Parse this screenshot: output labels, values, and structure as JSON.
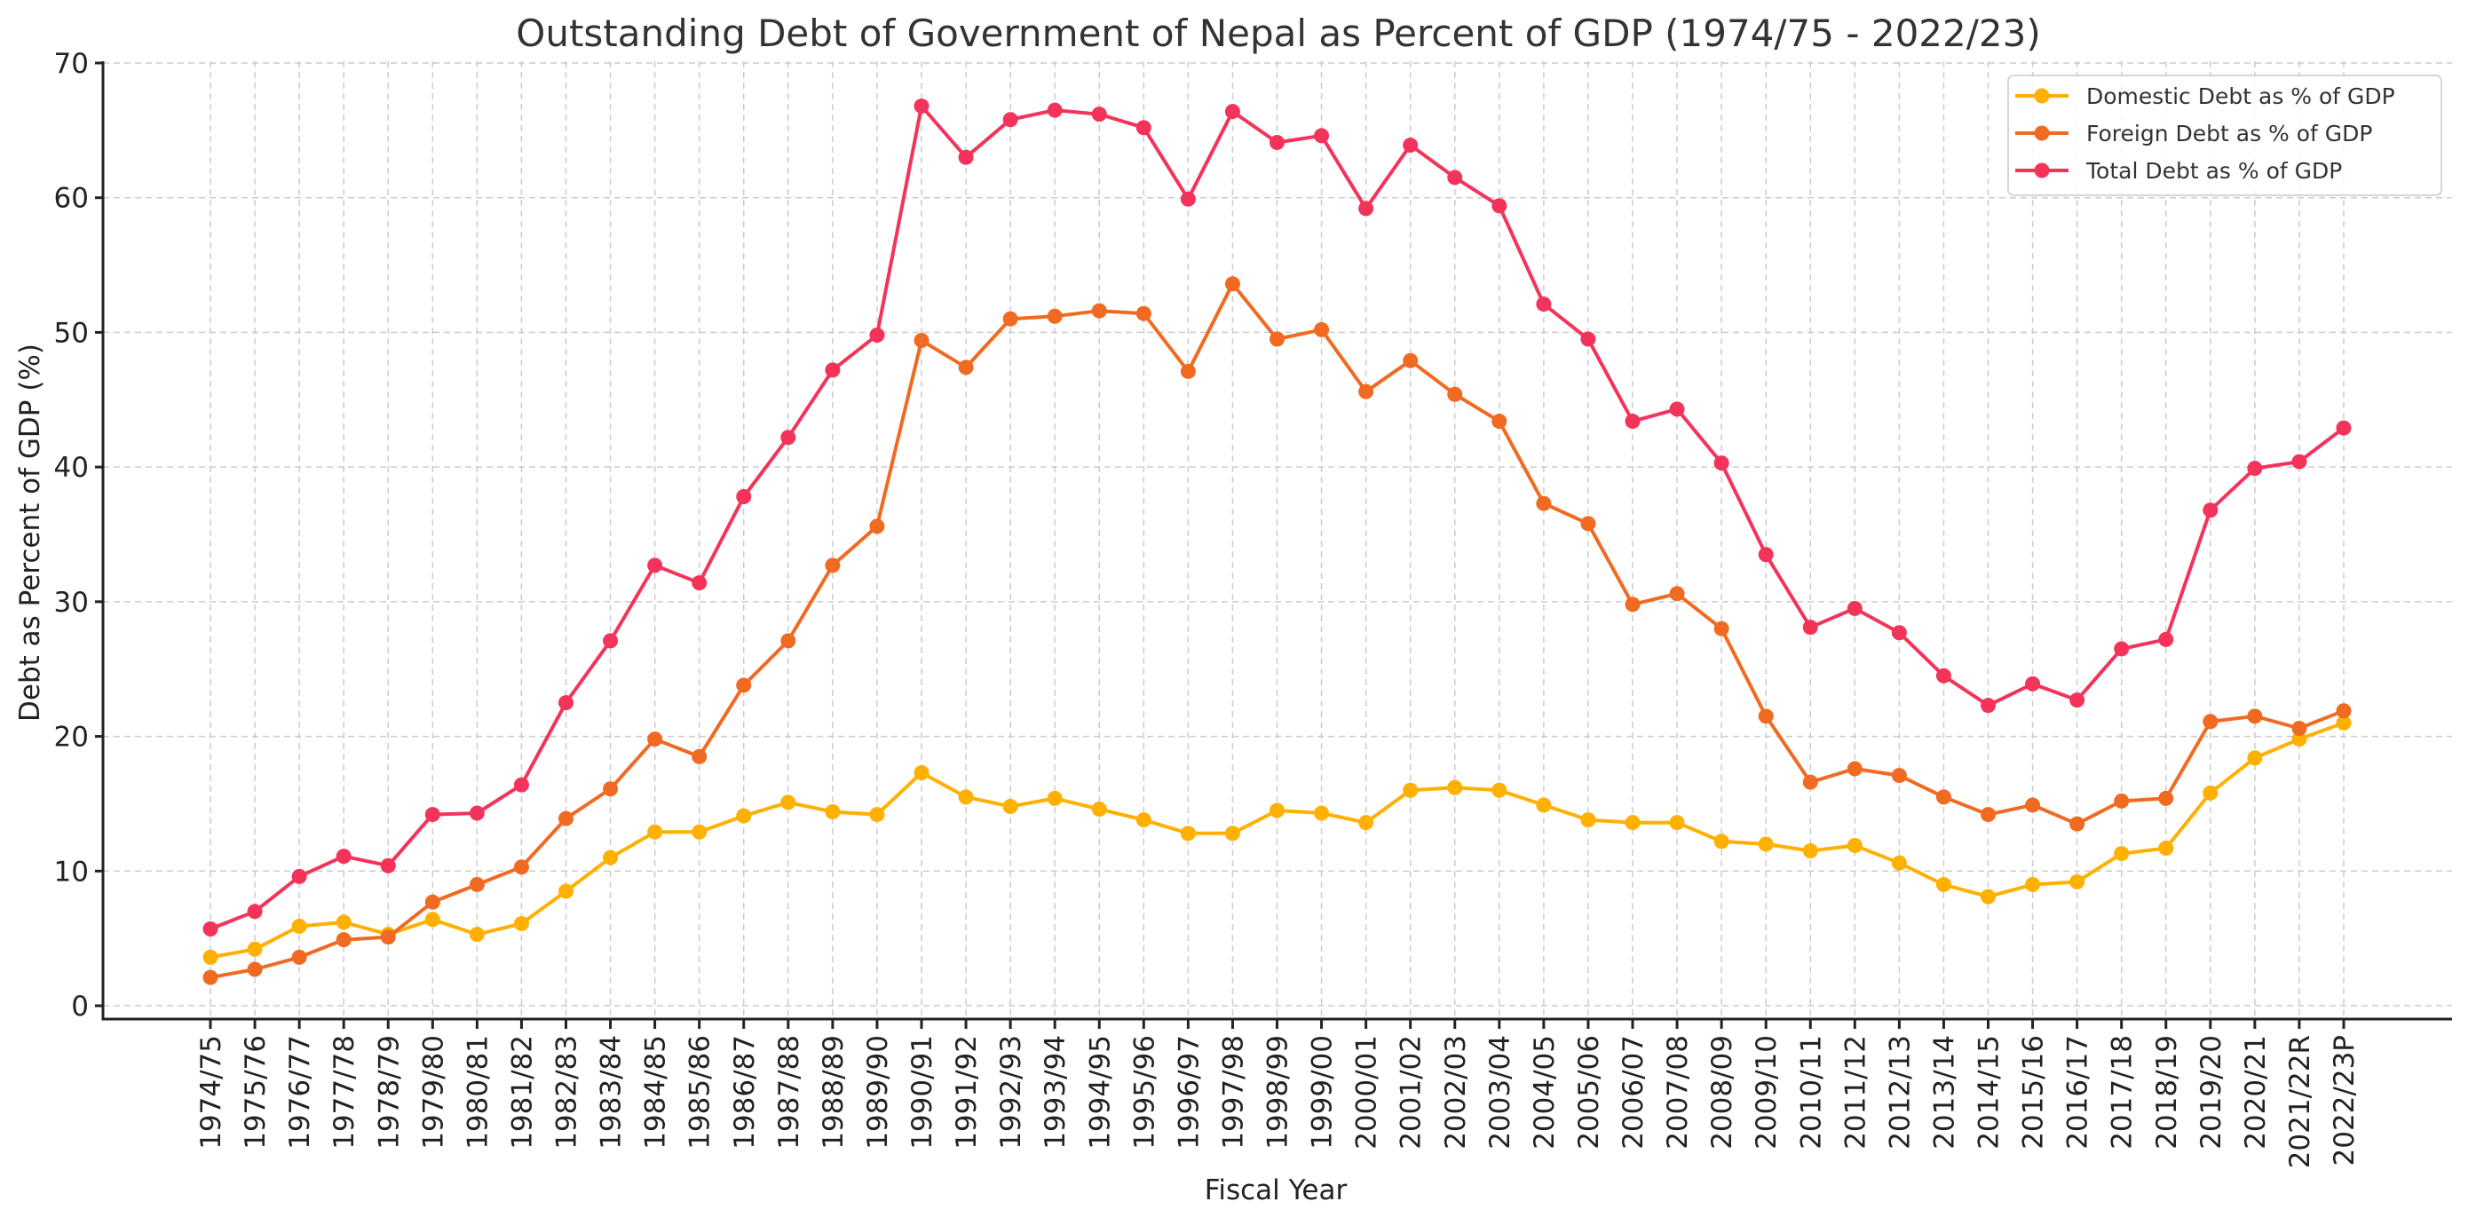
{
  "chart_data": {
    "type": "line",
    "title": "Outstanding Debt of Government of Nepal as Percent of GDP (1974/75 - 2022/23)",
    "xlabel": "Fiscal Year",
    "ylabel": "Debt as Percent of GDP (%)",
    "ylim": [
      -1,
      70
    ],
    "yticks": [
      0,
      10,
      20,
      30,
      40,
      50,
      60,
      70
    ],
    "grid": true,
    "legend_position": "top-right",
    "categories": [
      "1974/75",
      "1975/76",
      "1976/77",
      "1977/78",
      "1978/79",
      "1979/80",
      "1980/81",
      "1981/82",
      "1982/83",
      "1983/84",
      "1984/85",
      "1985/86",
      "1986/87",
      "1987/88",
      "1988/89",
      "1989/90",
      "1990/91",
      "1991/92",
      "1992/93",
      "1993/94",
      "1994/95",
      "1995/96",
      "1996/97",
      "1997/98",
      "1998/99",
      "1999/00",
      "2000/01",
      "2001/02",
      "2002/03",
      "2003/04",
      "2004/05",
      "2005/06",
      "2006/07",
      "2007/08",
      "2008/09",
      "2009/10",
      "2010/11",
      "2011/12",
      "2012/13",
      "2013/14",
      "2014/15",
      "2015/16",
      "2016/17",
      "2017/18",
      "2018/19",
      "2019/20",
      "2020/21",
      "2021/22R",
      "2022/23P"
    ],
    "series": [
      {
        "name": "Domestic Debt as % of GDP",
        "color": "#ffb000",
        "values": [
          3.6,
          4.2,
          5.9,
          6.2,
          5.3,
          6.4,
          5.3,
          6.1,
          8.5,
          11.0,
          12.9,
          12.9,
          14.1,
          15.1,
          14.4,
          14.2,
          17.3,
          15.5,
          14.8,
          15.4,
          14.6,
          13.8,
          12.8,
          12.8,
          14.5,
          14.3,
          13.6,
          16.0,
          16.2,
          16.0,
          14.9,
          13.8,
          13.6,
          13.6,
          12.2,
          12.0,
          11.5,
          11.9,
          10.6,
          9.0,
          8.1,
          9.0,
          9.2,
          11.3,
          11.7,
          15.8,
          18.4,
          19.8,
          21.0
        ]
      },
      {
        "name": "Foreign Debt as % of GDP",
        "color": "#f06a22",
        "values": [
          2.1,
          2.7,
          3.6,
          4.9,
          5.1,
          7.7,
          9.0,
          10.3,
          13.9,
          16.1,
          19.8,
          18.5,
          23.8,
          27.1,
          32.7,
          35.6,
          49.4,
          47.4,
          51.0,
          51.2,
          51.6,
          51.4,
          47.1,
          53.6,
          49.5,
          50.2,
          45.6,
          47.9,
          45.4,
          43.4,
          37.3,
          35.8,
          29.8,
          30.6,
          28.0,
          21.5,
          16.6,
          17.6,
          17.1,
          15.5,
          14.2,
          14.9,
          13.5,
          15.2,
          15.4,
          21.1,
          21.5,
          20.6,
          21.9
        ]
      },
      {
        "name": "Total Debt as % of GDP",
        "color": "#f4335a",
        "values": [
          5.7,
          7.0,
          9.6,
          11.1,
          10.4,
          14.2,
          14.3,
          16.4,
          22.5,
          27.1,
          32.7,
          31.4,
          37.8,
          42.2,
          47.2,
          49.8,
          66.8,
          63.0,
          65.8,
          66.5,
          66.2,
          65.2,
          59.9,
          66.4,
          64.1,
          64.6,
          59.2,
          63.9,
          61.5,
          59.4,
          52.1,
          49.5,
          43.4,
          44.3,
          40.3,
          33.5,
          28.1,
          29.5,
          27.7,
          24.5,
          22.3,
          23.9,
          22.7,
          26.5,
          27.2,
          36.8,
          39.9,
          40.4,
          42.9
        ]
      }
    ]
  }
}
